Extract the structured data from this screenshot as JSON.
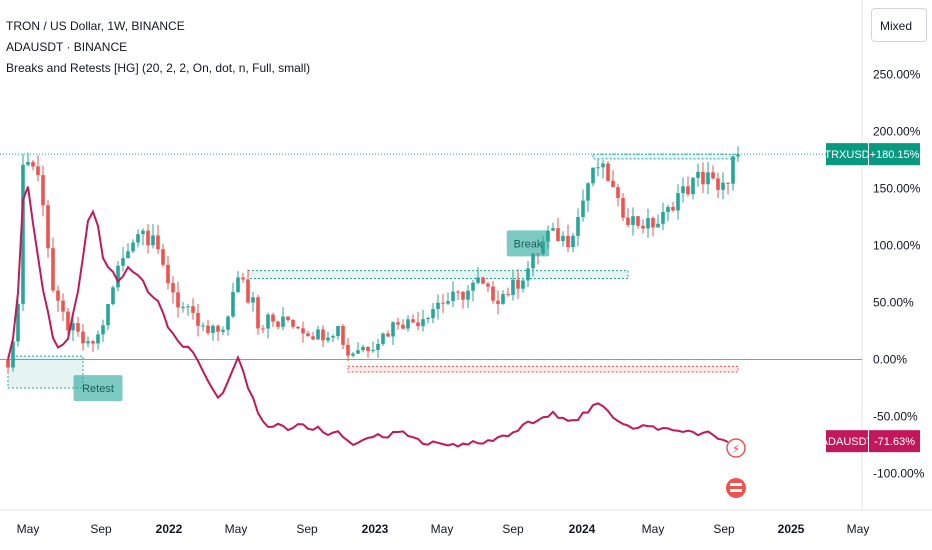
{
  "legend": {
    "main": "TRON / US Dollar, 1W, BINANCE",
    "compare": "ADAUSDT · BINANCE",
    "indicator": "Breaks and Retests [HG] (20, 2, 2, On, dot, n, Full, small)"
  },
  "scale_mode_label": "Mixed",
  "colors": {
    "up": "#26a69a",
    "down": "#ef5350",
    "compare_line": "#c2185b",
    "zero_line": "#9598a1",
    "break_box": "#26a69a",
    "retest_label": "#26a69a"
  },
  "chart_data": {
    "type": "candlestick",
    "y_axis_unit": "percent change",
    "y_ticks": [
      250,
      200,
      150,
      100,
      50,
      0,
      -50,
      -100
    ],
    "y_tick_labels": [
      "250.00%",
      "200.00%",
      "150.00%",
      "100.00%",
      "50.00%",
      "0.00%",
      "-50.00%",
      "-100.00%"
    ],
    "ylim": [
      -135,
      300
    ],
    "x_tick_labels": [
      "May",
      "Sep",
      "2022",
      "May",
      "Sep",
      "2023",
      "May",
      "Sep",
      "2024",
      "May",
      "Sep",
      "2025",
      "May"
    ],
    "x_tick_bold": [
      false,
      false,
      true,
      false,
      false,
      true,
      false,
      false,
      true,
      false,
      false,
      true,
      false
    ],
    "series": [
      {
        "name": "TRXUSD",
        "style": "candles",
        "badge": "TRXUSD",
        "last_label": "+180.15%",
        "last_value": 180.15,
        "weeks": 129,
        "anchors": [
          [
            0,
            0
          ],
          [
            1,
            10
          ],
          [
            2,
            55
          ],
          [
            3,
            170
          ],
          [
            4,
            175
          ],
          [
            5,
            170
          ],
          [
            6,
            160
          ],
          [
            7,
            140
          ],
          [
            8,
            100
          ],
          [
            9,
            60
          ],
          [
            10,
            45
          ],
          [
            12,
            30
          ],
          [
            14,
            20
          ],
          [
            16,
            10
          ],
          [
            18,
            20
          ],
          [
            20,
            45
          ],
          [
            22,
            80
          ],
          [
            24,
            100
          ],
          [
            26,
            110
          ],
          [
            27,
            120
          ],
          [
            28,
            105
          ],
          [
            29,
            110
          ],
          [
            30,
            90
          ],
          [
            32,
            70
          ],
          [
            34,
            50
          ],
          [
            36,
            40
          ],
          [
            38,
            30
          ],
          [
            40,
            22
          ],
          [
            42,
            25
          ],
          [
            44,
            35
          ],
          [
            46,
            75
          ],
          [
            47,
            70
          ],
          [
            48,
            55
          ],
          [
            49,
            60
          ],
          [
            50,
            30
          ],
          [
            52,
            35
          ],
          [
            54,
            30
          ],
          [
            56,
            35
          ],
          [
            58,
            30
          ],
          [
            60,
            25
          ],
          [
            62,
            22
          ],
          [
            64,
            25
          ],
          [
            66,
            28
          ],
          [
            68,
            5
          ],
          [
            70,
            10
          ],
          [
            72,
            12
          ],
          [
            74,
            18
          ],
          [
            76,
            25
          ],
          [
            78,
            35
          ],
          [
            80,
            32
          ],
          [
            82,
            35
          ],
          [
            84,
            42
          ],
          [
            86,
            50
          ],
          [
            88,
            52
          ],
          [
            90,
            55
          ],
          [
            92,
            60
          ],
          [
            94,
            68
          ],
          [
            96,
            58
          ],
          [
            98,
            55
          ],
          [
            100,
            60
          ],
          [
            102,
            68
          ],
          [
            104,
            80
          ],
          [
            106,
            95
          ],
          [
            108,
            110
          ],
          [
            110,
            108
          ],
          [
            112,
            105
          ],
          [
            114,
            125
          ],
          [
            116,
            155
          ],
          [
            118,
            170
          ],
          [
            120,
            160
          ],
          [
            122,
            135
          ],
          [
            124,
            125
          ],
          [
            126,
            120
          ],
          [
            128,
            118
          ],
          [
            130,
            120
          ],
          [
            132,
            130
          ],
          [
            134,
            145
          ],
          [
            136,
            150
          ],
          [
            138,
            160
          ],
          [
            139,
            158
          ],
          [
            140,
            165
          ],
          [
            141,
            155
          ],
          [
            142,
            145
          ],
          [
            143,
            150
          ],
          [
            144,
            160
          ],
          [
            145,
            175
          ],
          [
            146,
            180
          ]
        ]
      },
      {
        "name": "ADAUSDT",
        "style": "line",
        "badge": "ADAUSDT",
        "last_label": "-71.63%",
        "last_value": -71.63,
        "anchors": [
          [
            0,
            0
          ],
          [
            1,
            20
          ],
          [
            2,
            60
          ],
          [
            3,
            140
          ],
          [
            4,
            150
          ],
          [
            5,
            120
          ],
          [
            6,
            90
          ],
          [
            7,
            60
          ],
          [
            8,
            40
          ],
          [
            9,
            20
          ],
          [
            10,
            10
          ],
          [
            12,
            20
          ],
          [
            13,
            40
          ],
          [
            14,
            60
          ],
          [
            16,
            120
          ],
          [
            17,
            130
          ],
          [
            18,
            115
          ],
          [
            19,
            90
          ],
          [
            20,
            80
          ],
          [
            22,
            70
          ],
          [
            24,
            80
          ],
          [
            26,
            75
          ],
          [
            28,
            60
          ],
          [
            30,
            50
          ],
          [
            32,
            30
          ],
          [
            34,
            15
          ],
          [
            36,
            10
          ],
          [
            38,
            0
          ],
          [
            40,
            -20
          ],
          [
            42,
            -35
          ],
          [
            44,
            -20
          ],
          [
            46,
            0
          ],
          [
            47,
            -10
          ],
          [
            48,
            -25
          ],
          [
            50,
            -45
          ],
          [
            52,
            -60
          ],
          [
            54,
            -58
          ],
          [
            56,
            -62
          ],
          [
            58,
            -56
          ],
          [
            60,
            -61
          ],
          [
            62,
            -59
          ],
          [
            64,
            -66
          ],
          [
            66,
            -64
          ],
          [
            68,
            -72
          ],
          [
            70,
            -74
          ],
          [
            72,
            -70
          ],
          [
            74,
            -66
          ],
          [
            76,
            -68
          ],
          [
            78,
            -63
          ],
          [
            80,
            -67
          ],
          [
            82,
            -71
          ],
          [
            84,
            -73
          ],
          [
            86,
            -74
          ],
          [
            88,
            -74
          ],
          [
            90,
            -75
          ],
          [
            92,
            -73
          ],
          [
            94,
            -74
          ],
          [
            96,
            -72
          ],
          [
            98,
            -68
          ],
          [
            100,
            -66
          ],
          [
            102,
            -62
          ],
          [
            104,
            -55
          ],
          [
            106,
            -55
          ],
          [
            108,
            -50
          ],
          [
            109,
            -45
          ],
          [
            110,
            -50
          ],
          [
            112,
            -55
          ],
          [
            114,
            -52
          ],
          [
            116,
            -45
          ],
          [
            118,
            -38
          ],
          [
            120,
            -45
          ],
          [
            122,
            -55
          ],
          [
            124,
            -58
          ],
          [
            126,
            -60
          ],
          [
            128,
            -58
          ],
          [
            130,
            -62
          ],
          [
            132,
            -60
          ],
          [
            134,
            -63
          ],
          [
            136,
            -62
          ],
          [
            138,
            -66
          ],
          [
            140,
            -64
          ],
          [
            142,
            -68
          ],
          [
            144,
            -71.63
          ]
        ]
      }
    ],
    "zones": [
      {
        "kind": "resistance",
        "y_top": 180,
        "y_bottom": 176,
        "x_from": 117,
        "x_to": 146
      },
      {
        "kind": "support",
        "y_top": 78,
        "y_bottom": 71,
        "x_from": 48,
        "x_to": 124
      },
      {
        "kind": "support-break",
        "y_top": -6,
        "y_bottom": -11,
        "x_from": 68,
        "x_to": 146
      },
      {
        "kind": "support",
        "y_top": 3,
        "y_bottom": -25,
        "x_from": 0,
        "x_to": 15
      }
    ],
    "labels": [
      {
        "text": "Break",
        "x": 104,
        "y": 101
      },
      {
        "text": "Retest",
        "x": 18,
        "y": -26
      }
    ],
    "horizontal_lines": [
      {
        "name": "zero-line",
        "y": 0
      },
      {
        "name": "last-price-line",
        "y": 180.15
      }
    ]
  }
}
